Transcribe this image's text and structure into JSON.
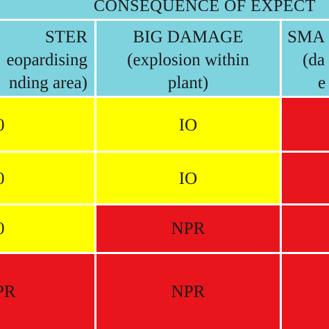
{
  "table": {
    "group_header": "CONSEQUENCE OF EXPECT",
    "columns": [
      {
        "name": "disaster",
        "line1": "STER",
        "line2": "eopardising",
        "line3": "nding area)"
      },
      {
        "name": "big-damage",
        "line1": "BIG DAMAGE",
        "line2": "(explosion within",
        "line3": "plant)"
      },
      {
        "name": "small",
        "line1": "SMA",
        "line2": "(da",
        "line3": "e"
      }
    ],
    "rows": [
      {
        "c0": "0",
        "c1": "IO",
        "c1_color": "yellow",
        "c0_color": "yellow",
        "c2_color": "red"
      },
      {
        "c0": "0",
        "c1": "IO",
        "c1_color": "yellow",
        "c0_color": "yellow",
        "c2_color": "red"
      },
      {
        "c0": "0",
        "c1": "NPR",
        "c1_color": "red",
        "c0_color": "yellow",
        "c2_color": "red"
      },
      {
        "c0": "PR",
        "c1": "NPR",
        "c1_color": "red",
        "c0_color": "red",
        "c2_color": "red"
      }
    ]
  },
  "colors": {
    "header": "#7fd3df",
    "yellow": "#ffff00",
    "red": "#e8161c",
    "grid": "#ffffff"
  }
}
